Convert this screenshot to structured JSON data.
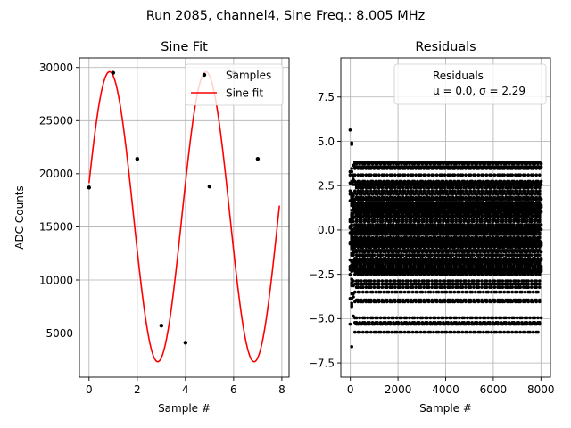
{
  "figure": {
    "suptitle": "Run 2085, channel4, Sine Freq.: 8.005 MHz"
  },
  "chart_data": [
    {
      "type": "line",
      "title": "Sine Fit",
      "xlabel": "Sample #",
      "ylabel": "ADC Counts",
      "xlim": [
        -0.4,
        8.3
      ],
      "ylim": [
        850,
        30900
      ],
      "xticks": [
        0,
        2,
        4,
        6,
        8
      ],
      "yticks": [
        5000,
        10000,
        15000,
        20000,
        25000,
        30000
      ],
      "grid": true,
      "legend_position": "top-right",
      "fit": {
        "amplitude": 13650,
        "offset": 15950,
        "freq": 0.25,
        "phase": 0.2345,
        "x_end": 7.9
      },
      "series": [
        {
          "name": "Samples",
          "style": "points",
          "color": "#000000",
          "x": [
            0,
            1,
            2,
            3,
            4,
            5,
            6,
            7
          ],
          "y": [
            18700,
            29500,
            21400,
            5700,
            4100,
            18800,
            29500,
            21400
          ]
        },
        {
          "name": "Sine fit",
          "style": "line",
          "color": "#ff0000"
        }
      ]
    },
    {
      "type": "scatter",
      "title": "Residuals",
      "xlabel": "Sample #",
      "ylabel": "",
      "xlim": [
        -400,
        8400
      ],
      "ylim": [
        -8.3,
        9.7
      ],
      "xticks": [
        0,
        2000,
        4000,
        6000,
        8000
      ],
      "yticks": [
        -7.5,
        -5.0,
        -2.5,
        0.0,
        2.5,
        5.0,
        7.5
      ],
      "grid": true,
      "legend_position": "top-right",
      "legend_lines": [
        "Residuals",
        "μ = 0.0, σ = 2.29"
      ],
      "series": [
        {
          "name": "Residuals",
          "color": "#000000",
          "count": 8000,
          "mean": 0.0,
          "std": 2.29,
          "x_range": [
            0,
            7999
          ]
        }
      ]
    }
  ]
}
